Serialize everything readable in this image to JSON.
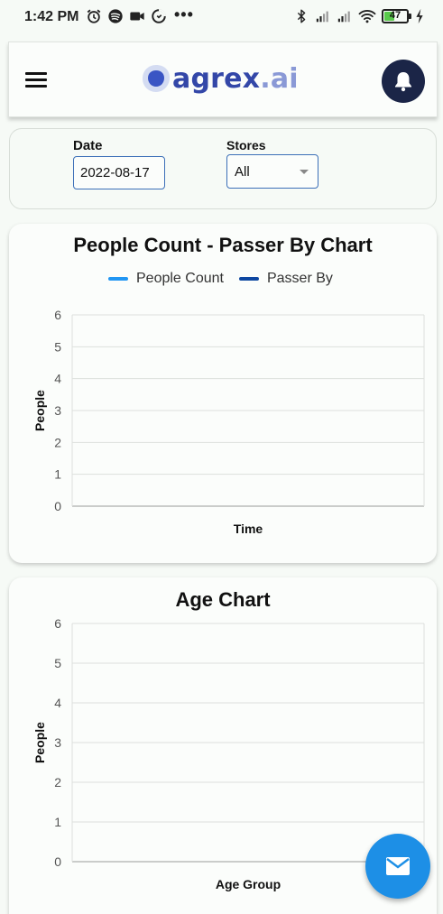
{
  "status_bar": {
    "time": "1:42 PM",
    "left_icons": [
      "alarm-icon",
      "spotify-icon",
      "video-camera-icon",
      "data-saver-icon"
    ],
    "more": "•••",
    "right_icons": [
      "bluetooth-icon",
      "signal-icon",
      "signal-icon",
      "wifi-icon"
    ],
    "battery_level": "47",
    "battery_fraction": 0.47,
    "battery_color": "#59c94b"
  },
  "header": {
    "menu_icon": "hamburger-menu-icon",
    "logo_name": "agrex",
    "logo_suffix": ".ai",
    "logo_color": "#3347a8",
    "notification_icon": "bell-icon",
    "notification_bg": "#1b2547"
  },
  "filters": {
    "date_label": "Date",
    "date_value": "2022-08-17",
    "stores_label": "Stores",
    "stores_value": "All"
  },
  "charts": [
    {
      "title": "People Count - Passer By Chart",
      "legend": [
        {
          "name": "People Count",
          "color": "#2196f3"
        },
        {
          "name": "Passer By",
          "color": "#0d47a1"
        }
      ]
    },
    {
      "title": "Age Chart"
    }
  ],
  "chart_data": [
    {
      "type": "line",
      "title": "People Count - Passer By Chart",
      "xlabel": "Time",
      "ylabel": "People",
      "ylim": [
        0,
        6
      ],
      "yticks": [
        "0",
        "1",
        "2",
        "3",
        "4",
        "5",
        "6"
      ],
      "x": [],
      "series": [
        {
          "name": "People Count",
          "color": "#2196f3",
          "values": []
        },
        {
          "name": "Passer By",
          "color": "#0d47a1",
          "values": []
        }
      ],
      "grid": true,
      "legend_position": "top"
    },
    {
      "type": "bar",
      "title": "Age Chart",
      "xlabel": "Age Group",
      "ylabel": "People",
      "ylim": [
        0,
        6
      ],
      "yticks": [
        "0",
        "1",
        "2",
        "3",
        "4",
        "5",
        "6"
      ],
      "categories": [],
      "values": [],
      "grid": true
    }
  ],
  "fab": {
    "icon": "mail-icon",
    "color": "#1d8fe6"
  }
}
